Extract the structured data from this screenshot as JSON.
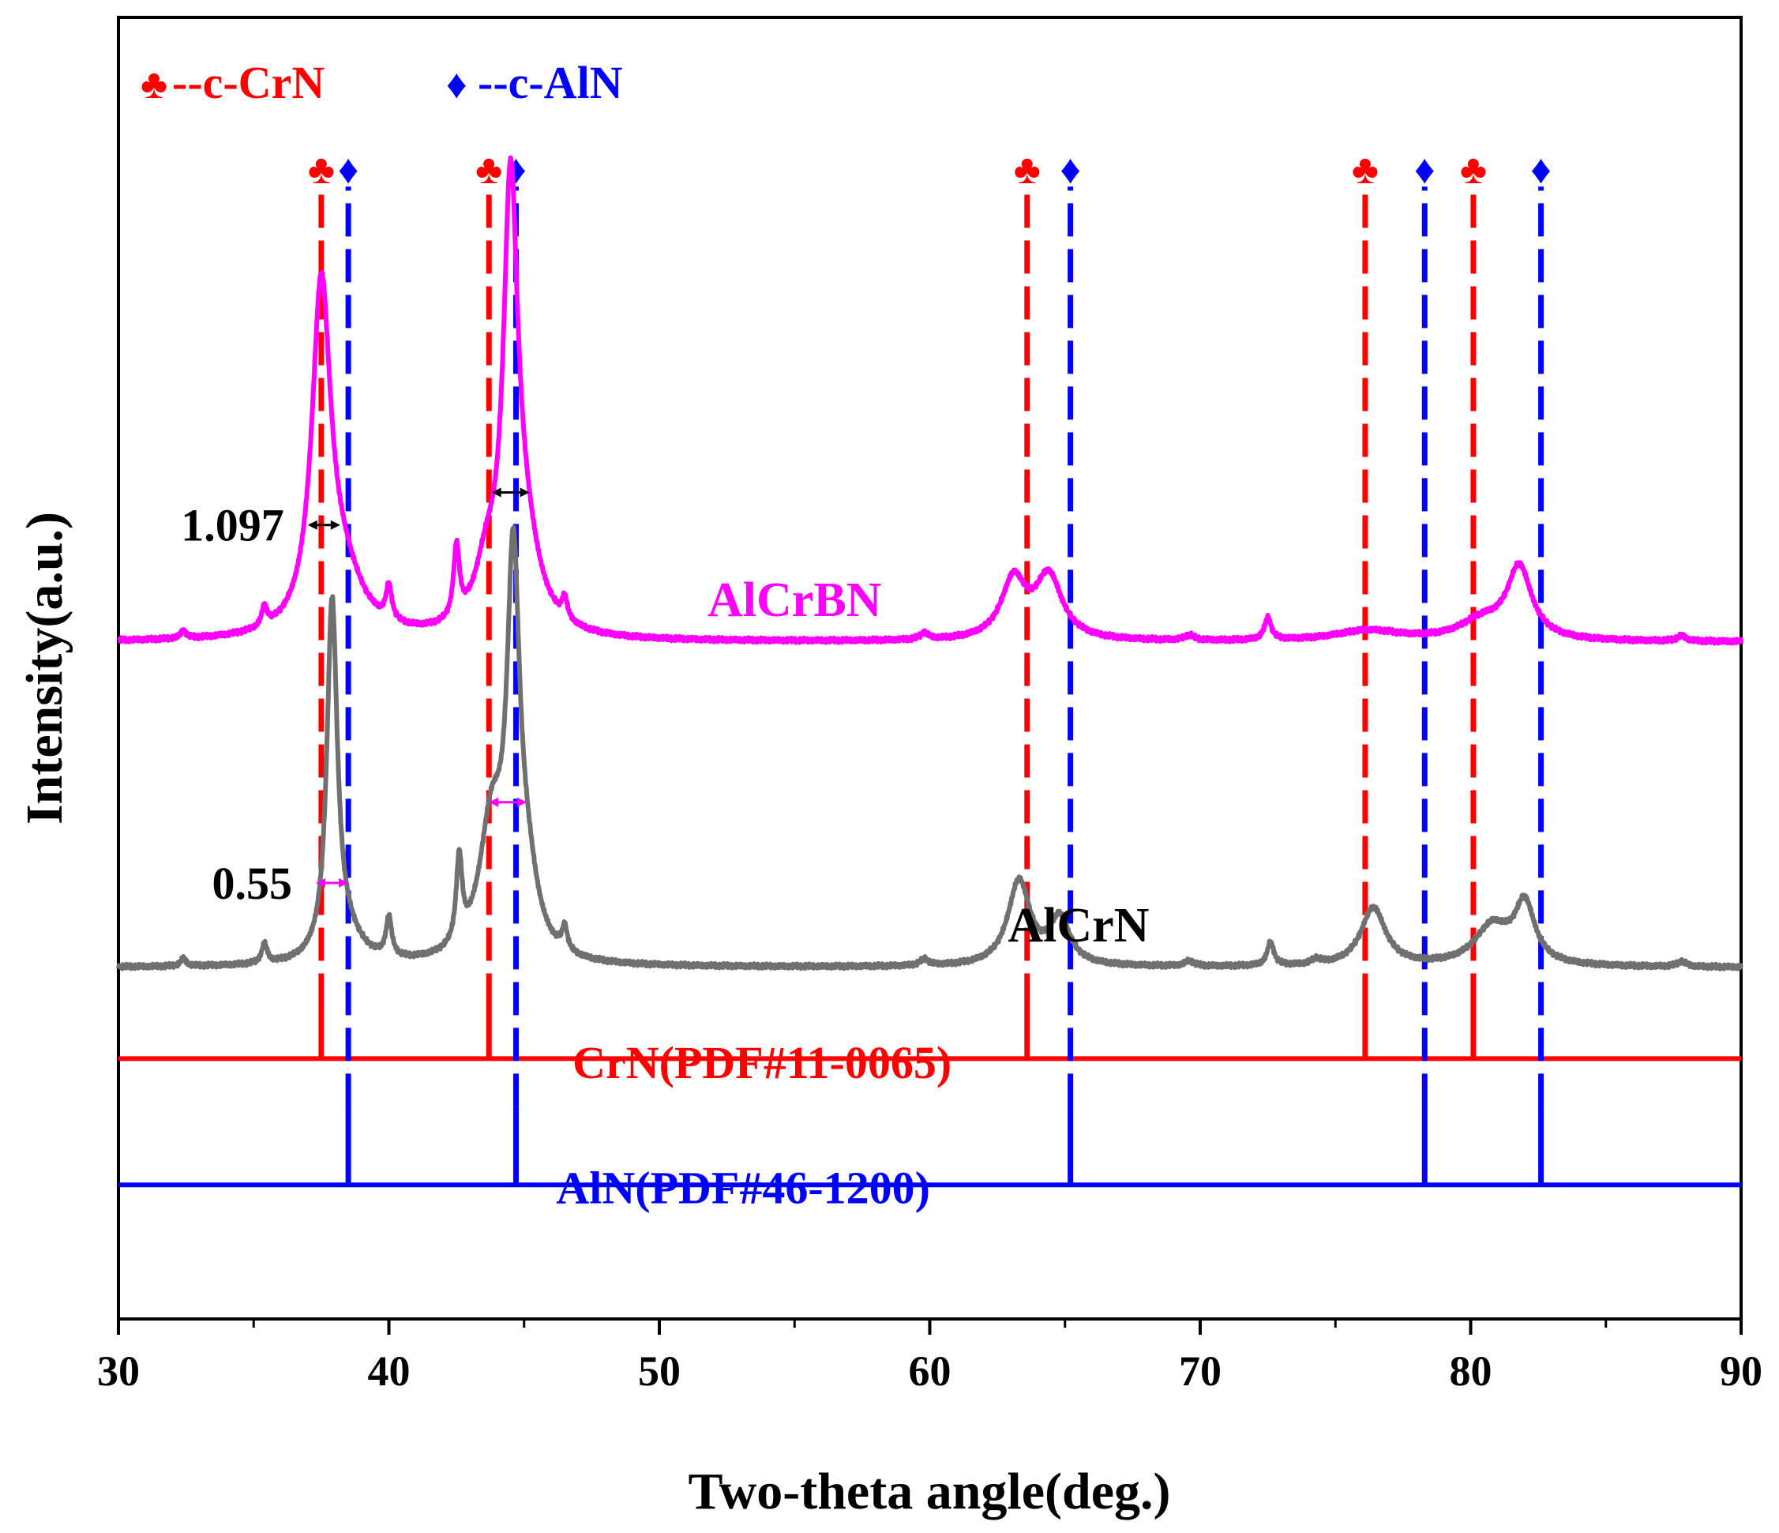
{
  "chart_data": {
    "type": "line",
    "title": "",
    "xlabel": "Two-theta angle(deg.)",
    "ylabel": "Intensity(a.u.)",
    "xlim": [
      30,
      90
    ],
    "ylim": [
      0,
      100
    ],
    "x_ticks": [
      30,
      40,
      50,
      60,
      70,
      80,
      90
    ],
    "y_ticks_shown": false,
    "grid": false,
    "colors": {
      "crn": "#ff0000",
      "aln": "#0000ff",
      "alcrbn": "#ff00ff",
      "alcrn": "#707070",
      "axis": "#000000"
    },
    "legend": {
      "position": "top-left",
      "items": [
        {
          "symbol": "♣",
          "label": "--c-CrN",
          "color": "#ff0000"
        },
        {
          "symbol": "♦",
          "label": "--c-AlN",
          "color": "#0000ff"
        }
      ]
    },
    "series": [
      {
        "name": "AlCrBN",
        "color": "#ff00ff",
        "baseline": 52,
        "peaks": [
          {
            "x": 32.4,
            "h": 0.6,
            "w": 0.12
          },
          {
            "x": 35.4,
            "h": 1.5,
            "w": 0.12
          },
          {
            "x": 37.5,
            "h": 26,
            "w": 0.42
          },
          {
            "x": 38.3,
            "h": 4,
            "w": 0.9
          },
          {
            "x": 40.0,
            "h": 2.6,
            "w": 0.13
          },
          {
            "x": 42.5,
            "h": 5.5,
            "w": 0.13
          },
          {
            "x": 43.6,
            "h": 4,
            "w": 0.5
          },
          {
            "x": 44.5,
            "h": 32,
            "w": 0.32
          },
          {
            "x": 45.0,
            "h": 6,
            "w": 0.7
          },
          {
            "x": 46.5,
            "h": 1.6,
            "w": 0.12
          },
          {
            "x": 59.8,
            "h": 0.5,
            "w": 0.18
          },
          {
            "x": 63.1,
            "h": 4.5,
            "w": 0.55
          },
          {
            "x": 64.4,
            "h": 4.8,
            "w": 0.6
          },
          {
            "x": 69.6,
            "h": 0.4,
            "w": 0.2
          },
          {
            "x": 72.5,
            "h": 1.7,
            "w": 0.15
          },
          {
            "x": 76.2,
            "h": 0.8,
            "w": 1.5
          },
          {
            "x": 80.4,
            "h": 1.4,
            "w": 1.0
          },
          {
            "x": 81.8,
            "h": 5.5,
            "w": 0.55
          },
          {
            "x": 87.8,
            "h": 0.4,
            "w": 0.2
          }
        ]
      },
      {
        "name": "AlCrN",
        "color": "#707070",
        "baseline": 27,
        "peaks": [
          {
            "x": 32.4,
            "h": 0.6,
            "w": 0.12
          },
          {
            "x": 35.4,
            "h": 1.5,
            "w": 0.12
          },
          {
            "x": 37.9,
            "h": 27,
            "w": 0.23
          },
          {
            "x": 38.4,
            "h": 2,
            "w": 0.7
          },
          {
            "x": 40.0,
            "h": 3,
            "w": 0.13
          },
          {
            "x": 42.6,
            "h": 6.5,
            "w": 0.13
          },
          {
            "x": 43.8,
            "h": 10,
            "w": 0.55
          },
          {
            "x": 44.6,
            "h": 28,
            "w": 0.28
          },
          {
            "x": 45.1,
            "h": 5,
            "w": 0.5
          },
          {
            "x": 46.5,
            "h": 1.8,
            "w": 0.12
          },
          {
            "x": 59.8,
            "h": 0.5,
            "w": 0.18
          },
          {
            "x": 63.3,
            "h": 6.5,
            "w": 0.5
          },
          {
            "x": 64.8,
            "h": 3.5,
            "w": 0.45
          },
          {
            "x": 69.6,
            "h": 0.4,
            "w": 0.2
          },
          {
            "x": 72.6,
            "h": 1.8,
            "w": 0.15
          },
          {
            "x": 74.3,
            "h": 0.4,
            "w": 0.2
          },
          {
            "x": 76.4,
            "h": 4.5,
            "w": 0.55
          },
          {
            "x": 80.8,
            "h": 3,
            "w": 0.8
          },
          {
            "x": 82.0,
            "h": 4.5,
            "w": 0.45
          },
          {
            "x": 87.8,
            "h": 0.4,
            "w": 0.2
          }
        ]
      }
    ],
    "reference_patterns": [
      {
        "label": "CrN(PDF#11-0065)",
        "phase_symbol": "♣",
        "color": "#ff0000",
        "baseline": 20,
        "stick_height": 4,
        "peaks": [
          37.5,
          43.7,
          63.6,
          76.1,
          80.1
        ]
      },
      {
        "label": "AlN(PDF#46-1200)",
        "phase_symbol": "♦",
        "color": "#0000ff",
        "baseline": 10.3,
        "stick_height": 6,
        "peaks": [
          38.5,
          44.7,
          65.2,
          78.3,
          82.6
        ]
      }
    ],
    "marker_line_top": 87,
    "fwhm_annotations": [
      {
        "label": "1.097",
        "x1": 37.0,
        "x2": 38.2,
        "y": 61,
        "color": "#000000",
        "label_side": "left"
      },
      {
        "label": "",
        "x1": 43.8,
        "x2": 45.2,
        "y": 63.5,
        "color": "#000000",
        "label_side": "none"
      },
      {
        "label": "0.55",
        "x1": 37.3,
        "x2": 38.5,
        "y": 33.5,
        "color": "#ff00ff",
        "label_side": "left"
      },
      {
        "label": "",
        "x1": 43.7,
        "x2": 45.1,
        "y": 39.7,
        "color": "#ff00ff",
        "label_side": "none"
      }
    ],
    "curve_labels": [
      {
        "text": "AlCrBN",
        "x": 55,
        "y": 54,
        "color": "#ff00ff"
      },
      {
        "text": "AlCrN",
        "x": 65.5,
        "y": 29,
        "color": "#000000"
      }
    ]
  }
}
